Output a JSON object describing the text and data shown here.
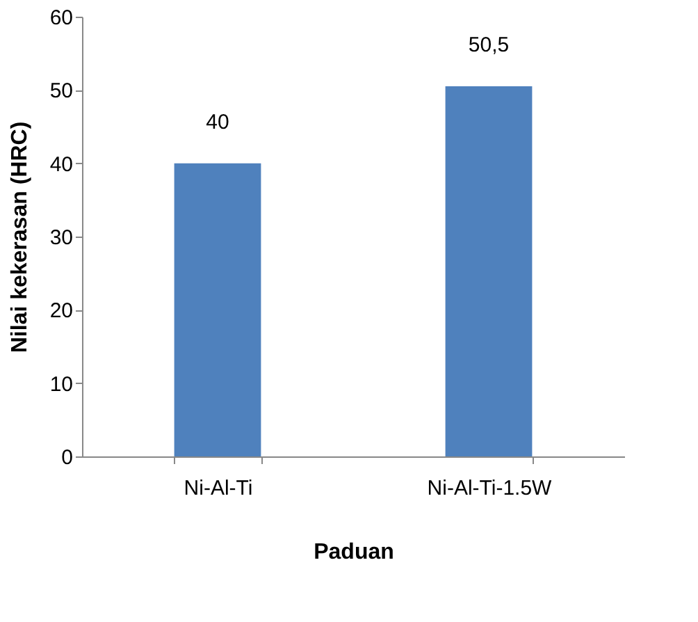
{
  "chart_data": {
    "type": "bar",
    "xlabel": "Paduan",
    "ylabel": "Nilai kekerasan (HRC)",
    "categories": [
      "Ni-Al-Ti",
      "Ni-Al-Ti-1.5W"
    ],
    "values": [
      40,
      50.5
    ],
    "color": "#4f81bd",
    "value_labels": [
      "40",
      "50,5"
    ],
    "ylim": [
      0,
      60
    ],
    "yticks": [
      0,
      10,
      20,
      30,
      40,
      50,
      60
    ],
    "grid": false
  }
}
